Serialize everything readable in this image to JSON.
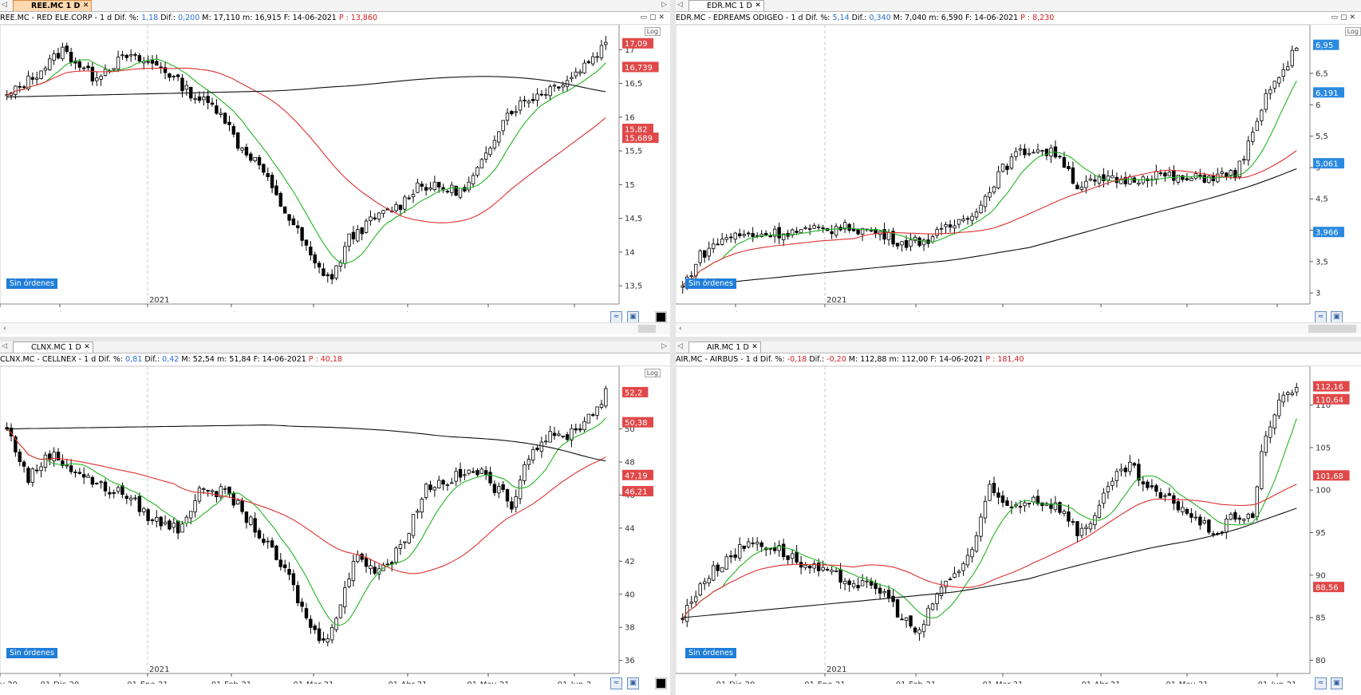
{
  "panes": [
    {
      "id": "ree",
      "tab": "REE.MC 1 D",
      "tab_active": true,
      "header": {
        "sym": "REE.MC - RED ELE.CORP -  1 d  Dif. %:",
        "difpct": "1,18",
        "dlabel": "Dif.:",
        "dif": "0,200",
        "rest": "M: 17,110  m: 16,915  F: 14-06-2021",
        "plabel": "P :",
        "p": "13,860"
      },
      "status": "Sin órdenes",
      "year_label": "2021",
      "x_labels": [
        "v-20",
        "01-Dic-20",
        "01-Ene-21",
        "01-Feb-21",
        "01-Mar-21",
        "01-Abr-21",
        "01-May-21",
        "01-Jun-2"
      ],
      "y_labels": [
        "17",
        "16,5",
        "16",
        "15,5",
        "15",
        "14,5",
        "14",
        "13,5"
      ],
      "y_min": 13.3,
      "y_max": 17.3,
      "price_tags": [
        {
          "v": "17,09",
          "val": 17.09,
          "color": "#e04848"
        },
        {
          "v": "16,739",
          "val": 16.739,
          "color": "#e04848"
        },
        {
          "v": "15,82",
          "val": 15.82,
          "color": "#e04848"
        },
        {
          "v": "15,689",
          "val": 15.689,
          "color": "#e04848"
        }
      ],
      "log_label": "Log",
      "chart_data": {
        "type": "candlestick",
        "title": "REE.MC - RED ELE.CORP",
        "anchors": [
          [
            0,
            16.3
          ],
          [
            8,
            16.7
          ],
          [
            13,
            17.0
          ],
          [
            20,
            16.6
          ],
          [
            28,
            16.9
          ],
          [
            36,
            16.75
          ],
          [
            44,
            16.3
          ],
          [
            50,
            16.1
          ],
          [
            54,
            15.6
          ],
          [
            59,
            15.3
          ],
          [
            63,
            14.8
          ],
          [
            68,
            14.3
          ],
          [
            72,
            13.8
          ],
          [
            76,
            13.6
          ],
          [
            80,
            14.2
          ],
          [
            86,
            14.5
          ],
          [
            92,
            14.7
          ],
          [
            96,
            15.0
          ],
          [
            101,
            14.95
          ],
          [
            107,
            14.9
          ],
          [
            111,
            15.3
          ],
          [
            116,
            16.0
          ],
          [
            120,
            16.2
          ],
          [
            126,
            16.4
          ],
          [
            132,
            16.6
          ],
          [
            137,
            16.9
          ],
          [
            140,
            17.09
          ]
        ],
        "ma_fast": "green",
        "ma_mid": "red",
        "ma_slow": "black"
      }
    },
    {
      "id": "edr",
      "tab": "EDR.MC 1 D",
      "tab_active": false,
      "header": {
        "sym": "EDR.MC - EDREAMS ODIGEO -  1 d  Dif. %:",
        "difpct": "5,14",
        "dlabel": "Dif.:",
        "dif": "0,340",
        "rest": "M: 7,040  m: 6,590  F: 14-06-2021",
        "plabel": "P :",
        "p": "8,230"
      },
      "status": "Sin órdenes",
      "year_label": "2021",
      "x_labels": [
        "01-Dic-20",
        "01-Ene-21",
        "01-Feb-21",
        "01-Mar-21",
        "01-Abr-21",
        "01-May-21",
        "01-Jun-21"
      ],
      "y_labels": [
        "6,5",
        "6",
        "5,5",
        "5",
        "4,5",
        "4",
        "3,5",
        "3"
      ],
      "y_min": 2.9,
      "y_max": 7.2,
      "price_tags": [
        {
          "v": "6,95",
          "val": 6.95,
          "color": "#2a8ae0"
        },
        {
          "v": "6,191",
          "val": 6.191,
          "color": "#2a8ae0"
        },
        {
          "v": "5,061",
          "val": 5.061,
          "color": "#2a8ae0"
        },
        {
          "v": "3,966",
          "val": 3.966,
          "color": "#2a8ae0"
        }
      ],
      "log_label": "Log",
      "chart_data": {
        "type": "candlestick",
        "title": "EDR.MC - EDREAMS ODIGEO",
        "anchors": [
          [
            0,
            3.1
          ],
          [
            4,
            3.6
          ],
          [
            10,
            3.9
          ],
          [
            20,
            3.95
          ],
          [
            30,
            4.0
          ],
          [
            38,
            4.05
          ],
          [
            45,
            3.95
          ],
          [
            50,
            3.8
          ],
          [
            56,
            3.85
          ],
          [
            62,
            4.1
          ],
          [
            68,
            4.4
          ],
          [
            72,
            4.9
          ],
          [
            76,
            5.2
          ],
          [
            80,
            5.3
          ],
          [
            86,
            5.2
          ],
          [
            90,
            4.7
          ],
          [
            96,
            4.8
          ],
          [
            102,
            4.8
          ],
          [
            108,
            4.9
          ],
          [
            114,
            4.8
          ],
          [
            120,
            4.85
          ],
          [
            126,
            4.9
          ],
          [
            130,
            5.5
          ],
          [
            134,
            6.3
          ],
          [
            137,
            6.5
          ],
          [
            140,
            6.95
          ]
        ],
        "ma_fast": "green",
        "ma_mid": "red",
        "ma_slow": "black"
      }
    },
    {
      "id": "clnx",
      "tab": "CLNX.MC 1 D",
      "tab_active": false,
      "header": {
        "sym": "CLNX.MC - CELLNEX -  1 d  Dif. %:",
        "difpct": "0,81",
        "dlabel": "Dif.:",
        "dif": "0,42",
        "rest": "M: 52,54  m: 51,84  F: 14-06-2021",
        "plabel": "P :",
        "p": "40,18"
      },
      "status": "Sin órdenes",
      "year_label": "2021",
      "x_labels": [
        "v-20",
        "01-Dic-20",
        "01-Ene-21",
        "01-Feb-21",
        "01-Mar-21",
        "01-Abr-21",
        "01-May-21",
        "01-Jun-2"
      ],
      "y_labels": [
        "50",
        "48",
        "46",
        "44",
        "42",
        "40",
        "38",
        "36"
      ],
      "y_min": 35.5,
      "y_max": 53.5,
      "price_tags": [
        {
          "v": "52,2",
          "val": 52.2,
          "color": "#e04848"
        },
        {
          "v": "50,38",
          "val": 50.38,
          "color": "#e04848"
        },
        {
          "v": "47,19",
          "val": 47.19,
          "color": "#e04848"
        },
        {
          "v": "46,21",
          "val": 46.21,
          "color": "#e04848"
        }
      ],
      "log_label": "Log",
      "chart_data": {
        "type": "candlestick",
        "title": "CLNX.MC - CELLNEX",
        "anchors": [
          [
            0,
            50.0
          ],
          [
            5,
            47.0
          ],
          [
            10,
            48.5
          ],
          [
            16,
            47.5
          ],
          [
            22,
            46.5
          ],
          [
            28,
            46.0
          ],
          [
            34,
            44.5
          ],
          [
            40,
            44.0
          ],
          [
            46,
            46.5
          ],
          [
            52,
            46.0
          ],
          [
            58,
            44.0
          ],
          [
            62,
            42.5
          ],
          [
            66,
            41.0
          ],
          [
            70,
            38.5
          ],
          [
            74,
            37.0
          ],
          [
            78,
            39.5
          ],
          [
            82,
            42.5
          ],
          [
            86,
            41.5
          ],
          [
            90,
            42.0
          ],
          [
            94,
            44.0
          ],
          [
            98,
            46.5
          ],
          [
            104,
            47.0
          ],
          [
            110,
            47.5
          ],
          [
            114,
            46.5
          ],
          [
            118,
            45.5
          ],
          [
            122,
            48.5
          ],
          [
            126,
            49.5
          ],
          [
            130,
            49.5
          ],
          [
            134,
            50.2
          ],
          [
            137,
            51.0
          ],
          [
            140,
            52.2
          ]
        ],
        "ma_fast": "green",
        "ma_mid": "red",
        "ma_slow": "black"
      }
    },
    {
      "id": "air",
      "tab": "AIR.MC 1 D",
      "tab_active": false,
      "header": {
        "sym": "AIR.MC - AIRBUS -  1 d  Dif. %:",
        "difpct": "-0,18",
        "dlabel": "Dif.:",
        "dif": "-0,20",
        "rest": "M: 112,88  m: 112,00  F: 14-06-2021",
        "plabel": "P :",
        "p": "181,40"
      },
      "status": "Sin órdenes",
      "year_label": "2021",
      "x_labels": [
        "01-Dic-20",
        "01-Ene-21",
        "01-Feb-21",
        "01-Mar-21",
        "01-Abr-21",
        "01-May-21",
        "01-Jun-21"
      ],
      "y_labels": [
        "110",
        "105",
        "100",
        "95",
        "90",
        "85",
        "80"
      ],
      "y_min": 79,
      "y_max": 114,
      "price_tags": [
        {
          "v": "112,16",
          "val": 112.16,
          "color": "#e04848"
        },
        {
          "v": "110,64",
          "val": 110.64,
          "color": "#e04848"
        },
        {
          "v": "101,68",
          "val": 101.68,
          "color": "#e04848"
        },
        {
          "v": "88,56",
          "val": 88.56,
          "color": "#e04848"
        }
      ],
      "log_label": "",
      "chart_data": {
        "type": "candlestick",
        "title": "AIR.MC - AIRBUS",
        "anchors": [
          [
            0,
            85
          ],
          [
            4,
            89
          ],
          [
            10,
            92
          ],
          [
            16,
            94
          ],
          [
            22,
            93
          ],
          [
            28,
            91
          ],
          [
            34,
            90
          ],
          [
            40,
            89
          ],
          [
            46,
            88
          ],
          [
            50,
            85
          ],
          [
            54,
            83
          ],
          [
            58,
            88
          ],
          [
            62,
            90
          ],
          [
            66,
            93
          ],
          [
            70,
            100
          ],
          [
            74,
            98
          ],
          [
            80,
            99
          ],
          [
            86,
            98
          ],
          [
            90,
            95
          ],
          [
            94,
            97
          ],
          [
            98,
            101
          ],
          [
            102,
            103
          ],
          [
            106,
            100
          ],
          [
            110,
            99
          ],
          [
            114,
            98
          ],
          [
            118,
            96
          ],
          [
            122,
            95
          ],
          [
            126,
            97
          ],
          [
            130,
            97
          ],
          [
            132,
            104
          ],
          [
            134,
            108
          ],
          [
            137,
            111
          ],
          [
            140,
            112.16
          ]
        ],
        "ma_fast": "green",
        "ma_mid": "red",
        "ma_slow": "black"
      }
    }
  ]
}
